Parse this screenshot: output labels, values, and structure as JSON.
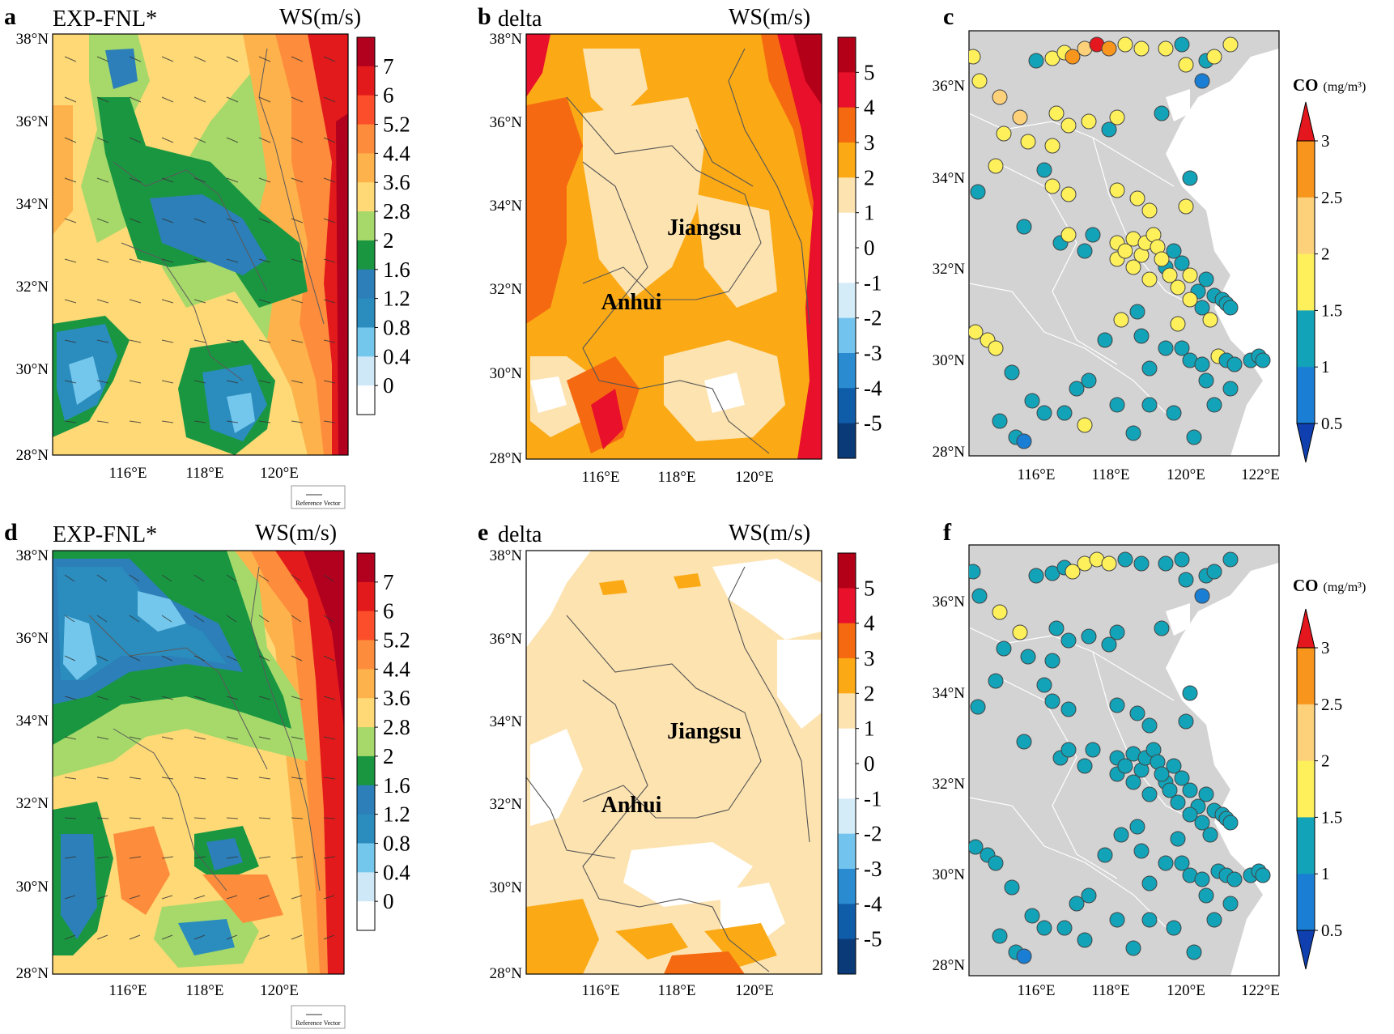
{
  "figure": {
    "panels": [
      {
        "id": "a",
        "type": "ws",
        "letter": "a",
        "title": "EXP-FNL*",
        "unit": "WS(m/s)",
        "lat_labels": [
          "38°N",
          "36°N",
          "34°N",
          "32°N",
          "30°N",
          "28°N"
        ],
        "lon_labels": [
          "116°E",
          "118°E",
          "120°E"
        ],
        "colorbar": [
          "7",
          "6",
          "5.2",
          "4.4",
          "3.6",
          "2.8",
          "2",
          "1.6",
          "1.2",
          "0.8",
          "0.4",
          "0"
        ],
        "colorbar_colors": [
          "#b2001f",
          "#e31a1c",
          "#fc4e2a",
          "#fd8d3c",
          "#feb24c",
          "#fed976",
          "#a6d96a",
          "#1a9641",
          "#2c7fb8",
          "#2b8cbe",
          "#74c7ec",
          "#cfe8f7",
          "#ffffff"
        ],
        "ref_vector": "Reference Vector",
        "regions": []
      },
      {
        "id": "b",
        "type": "delta",
        "letter": "b",
        "title": "delta",
        "unit": "WS(m/s)",
        "lat_labels": [
          "38°N",
          "36°N",
          "34°N",
          "32°N",
          "30°N",
          "28°N"
        ],
        "lon_labels": [
          "116°E",
          "118°E",
          "120°E"
        ],
        "colorbar": [
          "5",
          "4",
          "3",
          "2",
          "1",
          "0",
          "-1",
          "-2",
          "-3",
          "-4",
          "-5"
        ],
        "colorbar_colors": [
          "#b30018",
          "#e8102a",
          "#f56a10",
          "#fbaa16",
          "#fde3b0",
          "#ffffff",
          "#ffffff",
          "#d4ecf8",
          "#72c4ef",
          "#2a8bd0",
          "#0f5ca8",
          "#0b3a78"
        ],
        "regions": [
          "Jiangsu",
          "Anhui"
        ]
      },
      {
        "id": "c",
        "type": "co",
        "letter": "c",
        "lat_labels": [
          "36°N",
          "34°N",
          "32°N",
          "30°N",
          "28°N"
        ],
        "lon_labels": [
          "116°E",
          "118°E",
          "120°E",
          "122°E"
        ],
        "co_title": "CO",
        "co_unit": "(mg/m³)",
        "colorbar": [
          "3",
          "2.5",
          "2",
          "1.5",
          "1",
          "0.5"
        ],
        "colorbar_colors": [
          "#e3171d",
          "#f7951d",
          "#fdd07a",
          "#fdf05a",
          "#12a3b8",
          "#1a7fd4",
          "#1040b0"
        ]
      },
      {
        "id": "d",
        "type": "ws",
        "letter": "d",
        "title": "EXP-FNL*",
        "unit": "WS(m/s)",
        "lat_labels": [
          "38°N",
          "36°N",
          "34°N",
          "32°N",
          "30°N",
          "28°N"
        ],
        "lon_labels": [
          "116°E",
          "118°E",
          "120°E"
        ],
        "colorbar": [
          "7",
          "6",
          "5.2",
          "4.4",
          "3.6",
          "2.8",
          "2",
          "1.6",
          "1.2",
          "0.8",
          "0.4",
          "0"
        ],
        "colorbar_colors": [
          "#b2001f",
          "#e31a1c",
          "#fc4e2a",
          "#fd8d3c",
          "#feb24c",
          "#fed976",
          "#a6d96a",
          "#1a9641",
          "#2c7fb8",
          "#2b8cbe",
          "#74c7ec",
          "#cfe8f7",
          "#ffffff"
        ],
        "ref_vector": "Reference Vector",
        "regions": []
      },
      {
        "id": "e",
        "type": "delta",
        "letter": "e",
        "title": "delta",
        "unit": "WS(m/s)",
        "lat_labels": [
          "38°N",
          "36°N",
          "34°N",
          "32°N",
          "30°N",
          "28°N"
        ],
        "lon_labels": [
          "116°E",
          "118°E",
          "120°E"
        ],
        "colorbar": [
          "5",
          "4",
          "3",
          "2",
          "1",
          "0",
          "-1",
          "-2",
          "-3",
          "-4",
          "-5"
        ],
        "colorbar_colors": [
          "#b30018",
          "#e8102a",
          "#f56a10",
          "#fbaa16",
          "#fde3b0",
          "#ffffff",
          "#ffffff",
          "#d4ecf8",
          "#72c4ef",
          "#2a8bd0",
          "#0f5ca8",
          "#0b3a78"
        ],
        "regions": [
          "Jiangsu",
          "Anhui"
        ]
      },
      {
        "id": "f",
        "type": "co",
        "letter": "f",
        "lat_labels": [
          "36°N",
          "34°N",
          "32°N",
          "30°N",
          "28°N"
        ],
        "lon_labels": [
          "116°E",
          "118°E",
          "120°E",
          "122°E"
        ],
        "co_title": "CO",
        "co_unit": "(mg/m³)",
        "colorbar": [
          "3",
          "2.5",
          "2",
          "1.5",
          "1",
          "0.5"
        ],
        "colorbar_colors": [
          "#e3171d",
          "#f7951d",
          "#fdd07a",
          "#fdf05a",
          "#12a3b8",
          "#1a7fd4",
          "#1040b0"
        ]
      }
    ]
  }
}
